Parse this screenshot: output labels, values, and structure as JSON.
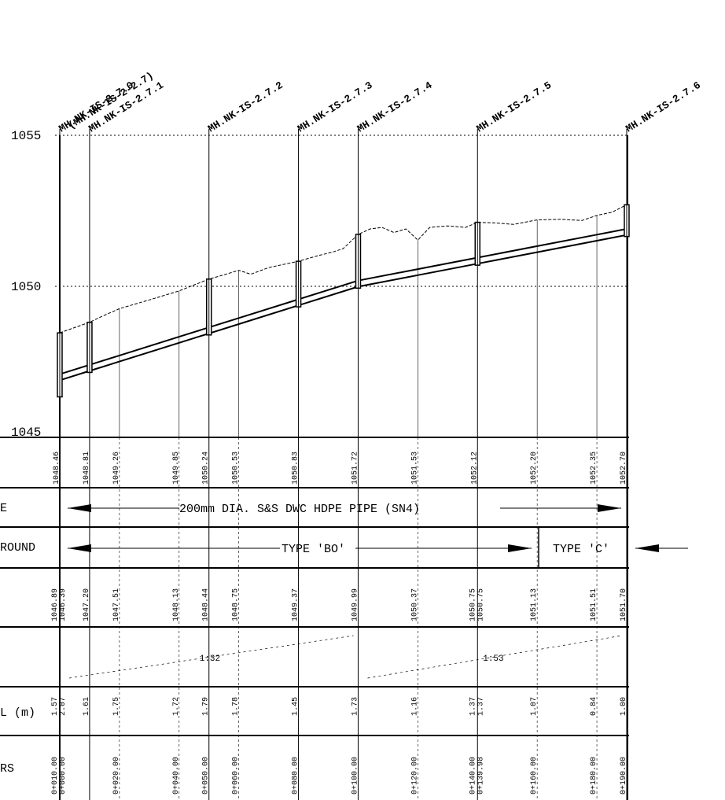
{
  "manholes": [
    {
      "id": "mh0",
      "lines": [
        "MH.NK-IS-2.7.0",
        "(MH.NK-IS-2-2.7)"
      ],
      "chainage": 0
    },
    {
      "id": "mh1",
      "lines": [
        "MH.NK-IS-2.7.1"
      ],
      "chainage": 10
    },
    {
      "id": "mh2",
      "lines": [
        "MH.NK-IS-2.7.2"
      ],
      "chainage": 50
    },
    {
      "id": "mh3",
      "lines": [
        "MH.NK-IS-2.7.3"
      ],
      "chainage": 80
    },
    {
      "id": "mh4",
      "lines": [
        "MH.NK-IS-2.7.4"
      ],
      "chainage": 100
    },
    {
      "id": "mh5",
      "lines": [
        "MH.NK-IS-2.7.5"
      ],
      "chainage": 140
    },
    {
      "id": "mh6",
      "lines": [
        "MH.NK-IS-2.7.6"
      ],
      "chainage": 190
    }
  ],
  "elevation_axis": {
    "min": 1045,
    "max": 1055,
    "labels": [
      "1045",
      "1050",
      "1055"
    ]
  },
  "ground_level": {
    "row_title": "",
    "values": [
      {
        "ch": 0,
        "label": "1048.46"
      },
      {
        "ch": 10,
        "label": "1048.81"
      },
      {
        "ch": 20,
        "label": "1049.26"
      },
      {
        "ch": 40,
        "label": "1049.85"
      },
      {
        "ch": 50,
        "label": "1050.24"
      },
      {
        "ch": 60,
        "label": "1050.53"
      },
      {
        "ch": 80,
        "label": "1050.83"
      },
      {
        "ch": 100,
        "label": "1051.72"
      },
      {
        "ch": 120,
        "label": "1051.53"
      },
      {
        "ch": 140,
        "label": "1052.12"
      },
      {
        "ch": 160,
        "label": "1052.20"
      },
      {
        "ch": 180,
        "label": "1052.35"
      },
      {
        "ch": 190,
        "label": "1052.70"
      }
    ]
  },
  "pipe": {
    "row_title": "E",
    "text": "200mm DIA. S&S DWC HDPE PIPE (SN4)"
  },
  "surround": {
    "row_title": "ROUND",
    "type_bo": "TYPE 'BO'",
    "type_c": "TYPE 'C'"
  },
  "invert_level": {
    "values": [
      {
        "ch": 0,
        "labels": [
          "1046.39",
          "1046.89"
        ]
      },
      {
        "ch": 10,
        "labels": [
          "1047.20"
        ]
      },
      {
        "ch": 20,
        "labels": [
          "1047.51"
        ]
      },
      {
        "ch": 40,
        "labels": [
          "1048.13"
        ]
      },
      {
        "ch": 50,
        "labels": [
          "1048.44"
        ]
      },
      {
        "ch": 60,
        "labels": [
          "1048.75"
        ]
      },
      {
        "ch": 80,
        "labels": [
          "1049.37"
        ]
      },
      {
        "ch": 100,
        "labels": [
          "1049.99"
        ]
      },
      {
        "ch": 120,
        "labels": [
          "1050.37"
        ]
      },
      {
        "ch": 140,
        "labels": [
          "1050.75",
          "1050.75"
        ]
      },
      {
        "ch": 160,
        "labels": [
          "1051.13"
        ]
      },
      {
        "ch": 180,
        "labels": [
          "1051.51"
        ]
      },
      {
        "ch": 190,
        "labels": [
          "1051.70"
        ]
      }
    ]
  },
  "gradients": [
    {
      "from": 0,
      "to": 100,
      "label": "1:32"
    },
    {
      "from": 100,
      "to": 190,
      "label": "1:53"
    }
  ],
  "depth": {
    "row_title": "L (m)",
    "values": [
      {
        "ch": 0,
        "labels": [
          "2.07",
          "1.57"
        ]
      },
      {
        "ch": 10,
        "labels": [
          "1.61"
        ]
      },
      {
        "ch": 20,
        "labels": [
          "1.75"
        ]
      },
      {
        "ch": 40,
        "labels": [
          "1.72"
        ]
      },
      {
        "ch": 50,
        "labels": [
          "1.79"
        ]
      },
      {
        "ch": 60,
        "labels": [
          "1.78"
        ]
      },
      {
        "ch": 80,
        "labels": [
          "1.45"
        ]
      },
      {
        "ch": 100,
        "labels": [
          "1.73"
        ]
      },
      {
        "ch": 120,
        "labels": [
          "1.16"
        ]
      },
      {
        "ch": 140,
        "labels": [
          "1.37",
          "1.37"
        ]
      },
      {
        "ch": 160,
        "labels": [
          "1.07"
        ]
      },
      {
        "ch": 180,
        "labels": [
          "0.84"
        ]
      },
      {
        "ch": 190,
        "labels": [
          "1.00"
        ]
      }
    ]
  },
  "chainage": {
    "row_title": "RS",
    "values": [
      {
        "ch": 0,
        "labels": [
          "0+000.00",
          "0+010.00"
        ]
      },
      {
        "ch": 20,
        "labels": [
          "0+020.00"
        ]
      },
      {
        "ch": 40,
        "labels": [
          "0+040.00"
        ]
      },
      {
        "ch": 50,
        "labels": [
          "0+050.00"
        ]
      },
      {
        "ch": 60,
        "labels": [
          "0+060.00"
        ]
      },
      {
        "ch": 80,
        "labels": [
          "0+080.00"
        ]
      },
      {
        "ch": 100,
        "labels": [
          "0+100.00"
        ]
      },
      {
        "ch": 120,
        "labels": [
          "0+120.00"
        ]
      },
      {
        "ch": 140,
        "labels": [
          "0+139.98",
          "0+140.00"
        ]
      },
      {
        "ch": 160,
        "labels": [
          "0+160.00"
        ]
      },
      {
        "ch": 180,
        "labels": [
          "0+180.00"
        ]
      },
      {
        "ch": 190,
        "labels": [
          "0+190.00"
        ]
      }
    ]
  },
  "ground_profile": [
    [
      0,
      1048.46
    ],
    [
      10,
      1048.81
    ],
    [
      14,
      1049.0
    ],
    [
      20,
      1049.26
    ],
    [
      30,
      1049.55
    ],
    [
      40,
      1049.85
    ],
    [
      50,
      1050.24
    ],
    [
      55,
      1050.38
    ],
    [
      60,
      1050.53
    ],
    [
      64,
      1050.4
    ],
    [
      70,
      1050.62
    ],
    [
      80,
      1050.83
    ],
    [
      86,
      1051.0
    ],
    [
      92,
      1051.15
    ],
    [
      95,
      1051.25
    ],
    [
      100,
      1051.72
    ],
    [
      104,
      1051.9
    ],
    [
      108,
      1051.95
    ],
    [
      112,
      1051.78
    ],
    [
      116,
      1051.9
    ],
    [
      120,
      1051.53
    ],
    [
      124,
      1051.95
    ],
    [
      130,
      1052.0
    ],
    [
      136,
      1051.95
    ],
    [
      140,
      1052.12
    ],
    [
      146,
      1052.1
    ],
    [
      152,
      1052.05
    ],
    [
      160,
      1052.2
    ],
    [
      168,
      1052.22
    ],
    [
      175,
      1052.18
    ],
    [
      180,
      1052.35
    ],
    [
      185,
      1052.45
    ],
    [
      190,
      1052.7
    ]
  ]
}
